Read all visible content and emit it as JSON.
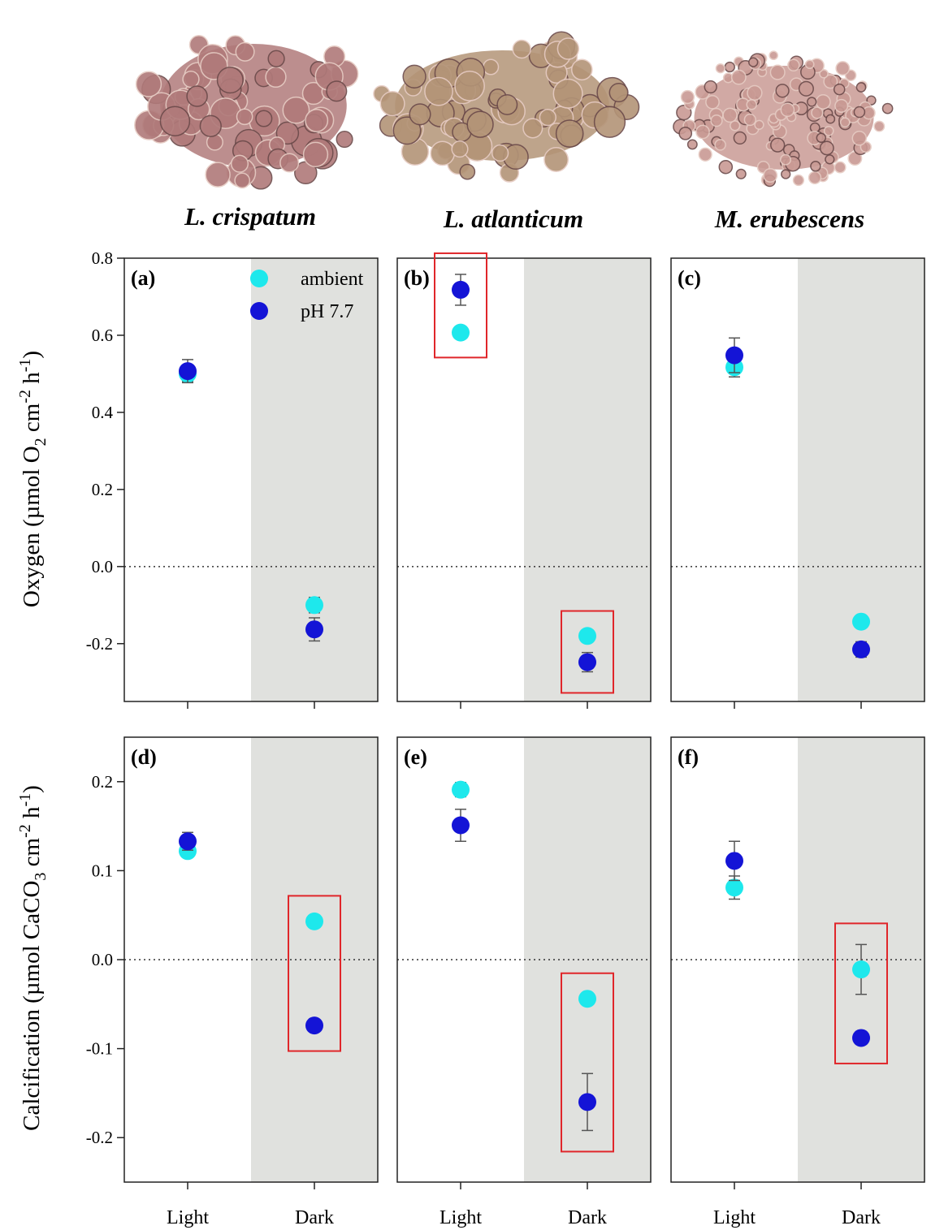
{
  "species": [
    {
      "name": "L. crispatum",
      "image": "l-crispatum-photo",
      "color": "#b07a7a"
    },
    {
      "name": "L. atlanticum",
      "image": "l-atlanticum-photo",
      "color": "#b39477"
    },
    {
      "name": "M. erubescens",
      "image": "m-erubescens-photo",
      "color": "#c99a94"
    }
  ],
  "legend": [
    {
      "label": "ambient",
      "color": "#1ee8ec"
    },
    {
      "label": "pH 7.7",
      "color": "#1414d6"
    }
  ],
  "colors": {
    "ambient": "#1ee8ec",
    "ph77": "#1414d6",
    "dark_shading": "#e0e1de",
    "highlight_box": "#e0262a",
    "error_bar": "#555555"
  },
  "chart_data": [
    {
      "panel": "(a)",
      "type": "scatter",
      "row": "oxygen",
      "ylabel": "Oxygen (µmol O2 cm-2 h-1)",
      "ylim": [
        -0.35,
        0.8
      ],
      "yticks": [
        "0.8",
        "0.6",
        "0.4",
        "0.2",
        "0.0",
        "-0.2"
      ],
      "categories": [
        "Light",
        "Dark"
      ],
      "shaded_category": "Dark",
      "series": [
        {
          "name": "ambient",
          "values": [
            0.5,
            -0.1
          ],
          "err": [
            0.02,
            0.02
          ]
        },
        {
          "name": "pH 7.7",
          "values": [
            0.507,
            -0.163
          ],
          "err": [
            0.03,
            0.03
          ]
        }
      ],
      "highlight": []
    },
    {
      "panel": "(b)",
      "type": "scatter",
      "row": "oxygen",
      "ylim": [
        -0.35,
        0.8
      ],
      "categories": [
        "Light",
        "Dark"
      ],
      "shaded_category": "Dark",
      "series": [
        {
          "name": "ambient",
          "values": [
            0.607,
            -0.18
          ],
          "err": [
            0.01,
            0.01
          ]
        },
        {
          "name": "pH 7.7",
          "values": [
            0.718,
            -0.248
          ],
          "err": [
            0.04,
            0.025
          ]
        }
      ],
      "highlight": [
        "Light",
        "Dark"
      ]
    },
    {
      "panel": "(c)",
      "type": "scatter",
      "row": "oxygen",
      "ylim": [
        -0.35,
        0.8
      ],
      "categories": [
        "Light",
        "Dark"
      ],
      "shaded_category": "Dark",
      "series": [
        {
          "name": "ambient",
          "values": [
            0.517,
            -0.143
          ],
          "err": [
            0.025,
            0.01
          ]
        },
        {
          "name": "pH 7.7",
          "values": [
            0.548,
            -0.215
          ],
          "err": [
            0.045,
            0.02
          ]
        }
      ],
      "highlight": []
    },
    {
      "panel": "(d)",
      "type": "scatter",
      "row": "calcification",
      "ylabel": "Calcification (µmol CaCO3 cm-2 h-1)",
      "ylim": [
        -0.25,
        0.25
      ],
      "yticks": [
        "0.2",
        "0.1",
        "0.0",
        "-0.1",
        "-0.2"
      ],
      "categories": [
        "Light",
        "Dark"
      ],
      "shaded_category": "Dark",
      "series": [
        {
          "name": "ambient",
          "values": [
            0.122,
            0.043
          ],
          "err": [
            0.005,
            0.005
          ]
        },
        {
          "name": "pH 7.7",
          "values": [
            0.133,
            -0.074
          ],
          "err": [
            0.01,
            0.005
          ]
        }
      ],
      "highlight": [
        "Dark"
      ]
    },
    {
      "panel": "(e)",
      "type": "scatter",
      "row": "calcification",
      "ylim": [
        -0.25,
        0.25
      ],
      "categories": [
        "Light",
        "Dark"
      ],
      "shaded_category": "Dark",
      "series": [
        {
          "name": "ambient",
          "values": [
            0.191,
            -0.044
          ],
          "err": [
            0.008,
            0.005
          ]
        },
        {
          "name": "pH 7.7",
          "values": [
            0.151,
            -0.16
          ],
          "err": [
            0.018,
            0.032
          ]
        }
      ],
      "highlight": [
        "Dark"
      ]
    },
    {
      "panel": "(f)",
      "type": "scatter",
      "row": "calcification",
      "ylim": [
        -0.25,
        0.25
      ],
      "categories": [
        "Light",
        "Dark"
      ],
      "shaded_category": "Dark",
      "series": [
        {
          "name": "ambient",
          "values": [
            0.081,
            -0.011
          ],
          "err": [
            0.013,
            0.028
          ]
        },
        {
          "name": "pH 7.7",
          "values": [
            0.111,
            -0.088
          ],
          "err": [
            0.022,
            0.005
          ]
        }
      ],
      "highlight": [
        "Dark"
      ]
    }
  ]
}
